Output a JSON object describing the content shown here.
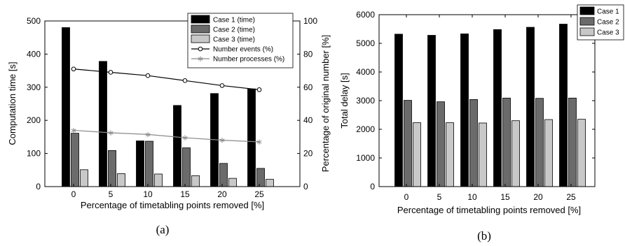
{
  "chart_data": [
    {
      "type": "bar",
      "caption": "(a)",
      "categories": [
        "0",
        "5",
        "10",
        "15",
        "20",
        "25"
      ],
      "xlabel": "Percentage of timetabling points removed [%]",
      "ylabel": "Computation time [s]",
      "ylim": [
        0,
        500
      ],
      "yticks": [
        "0",
        "100",
        "200",
        "300",
        "400",
        "500"
      ],
      "y2label": "Percentage of original number [%]",
      "y2lim": [
        0,
        100
      ],
      "y2ticks": [
        "0",
        "20",
        "40",
        "60",
        "80",
        "100"
      ],
      "grid": false,
      "legend_position": "top-right",
      "series": [
        {
          "name": "Case 1 (time)",
          "kind": "bar",
          "axis": "left",
          "color": "#000000",
          "values": [
            480,
            378,
            138,
            245,
            281,
            295
          ]
        },
        {
          "name": "Case 2 (time)",
          "kind": "bar",
          "axis": "left",
          "color": "#6b6b6b",
          "values": [
            161,
            109,
            137,
            117,
            70,
            55
          ]
        },
        {
          "name": "Case 3 (time)",
          "kind": "bar",
          "axis": "left",
          "color": "#c8c8c8",
          "values": [
            51,
            39,
            38,
            33,
            25,
            22
          ]
        },
        {
          "name": "Number events (%)",
          "kind": "line",
          "axis": "right",
          "color": "#000000",
          "marker": "circle",
          "values": [
            71,
            69,
            67,
            64,
            61,
            58.5
          ]
        },
        {
          "name": "Number processes (%)",
          "kind": "line",
          "axis": "right",
          "color": "#8a8a8a",
          "marker": "star",
          "values": [
            34,
            32.5,
            31.5,
            29.5,
            28,
            27
          ]
        }
      ]
    },
    {
      "type": "bar",
      "caption": "(b)",
      "categories": [
        "0",
        "5",
        "10",
        "15",
        "20",
        "25"
      ],
      "xlabel": "Percentage of timetabling points removed [%]",
      "ylabel": "Total delay [s]",
      "ylim": [
        0,
        6000
      ],
      "yticks": [
        "0",
        "1000",
        "2000",
        "3000",
        "4000",
        "5000",
        "6000"
      ],
      "grid": false,
      "legend_position": "top-right",
      "series": [
        {
          "name": "Case 1",
          "kind": "bar",
          "color": "#000000",
          "values": [
            5320,
            5280,
            5330,
            5480,
            5560,
            5670
          ]
        },
        {
          "name": "Case 2",
          "kind": "bar",
          "color": "#6b6b6b",
          "values": [
            3010,
            2960,
            3040,
            3090,
            3080,
            3090
          ]
        },
        {
          "name": "Case 3",
          "kind": "bar",
          "color": "#c8c8c8",
          "values": [
            2230,
            2230,
            2220,
            2300,
            2340,
            2350
          ]
        }
      ]
    }
  ]
}
